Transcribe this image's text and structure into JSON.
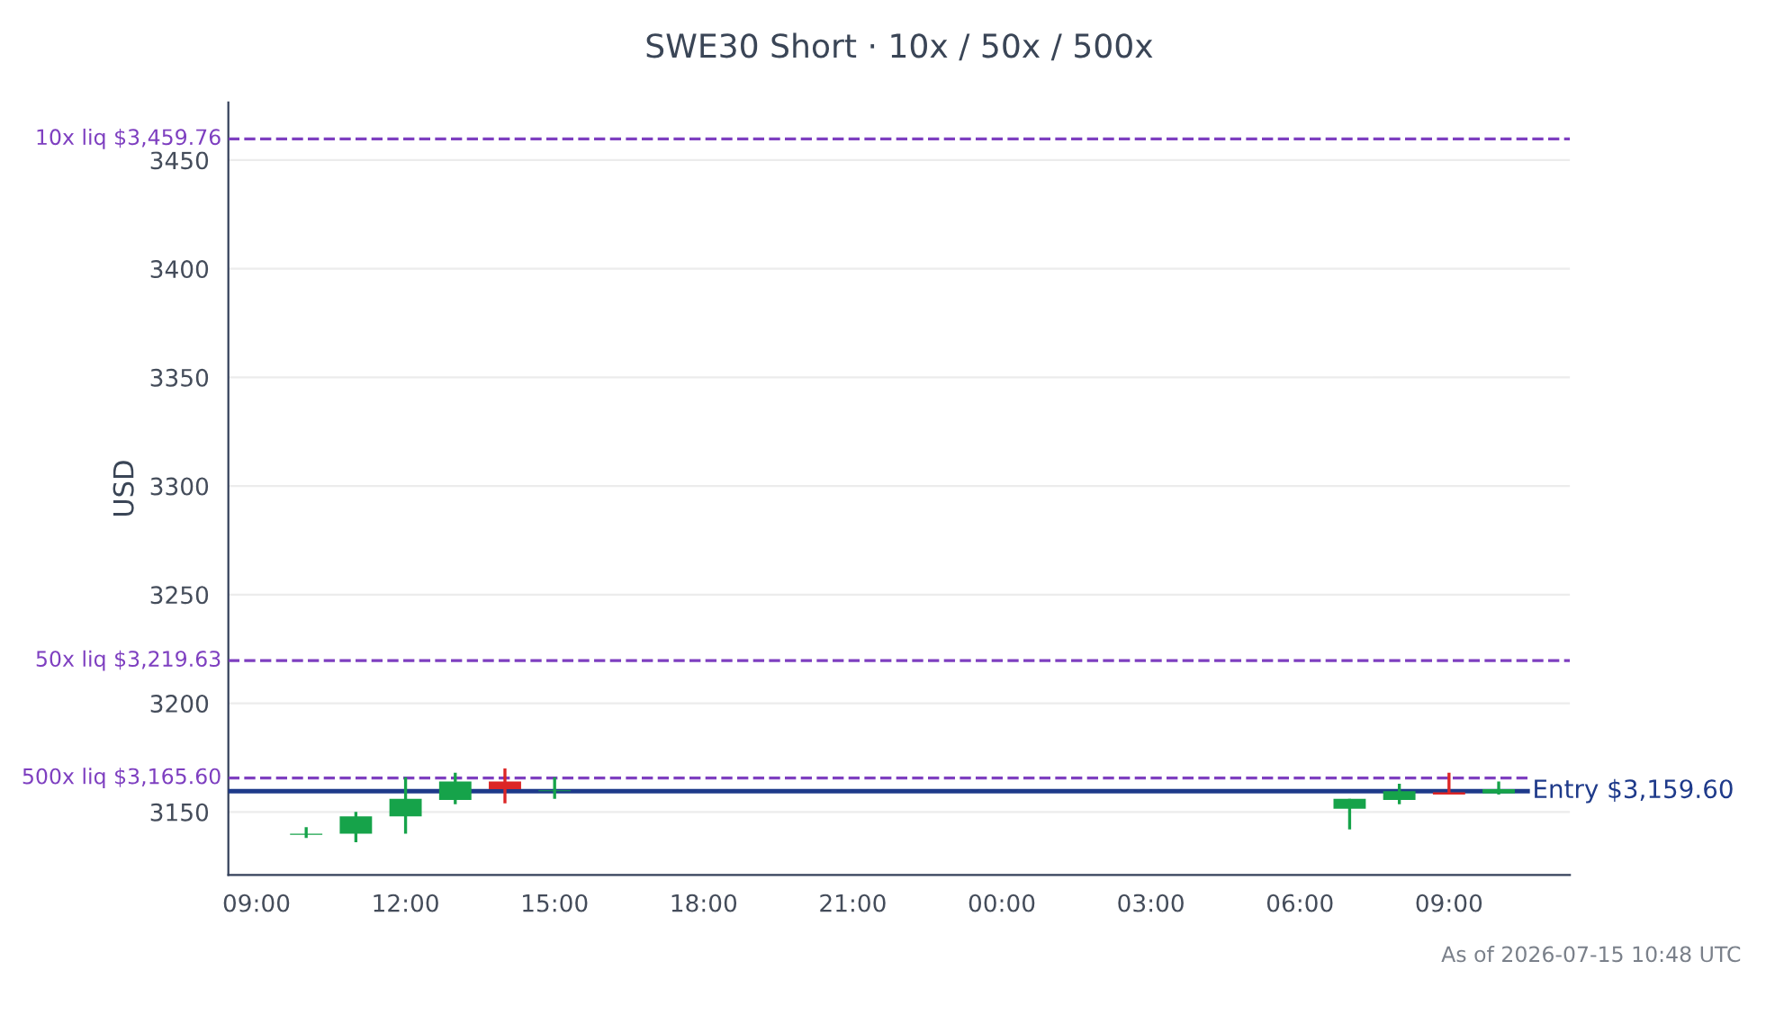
{
  "chart_data": {
    "type": "candlestick",
    "title": "SWE30 Short · 10x / 50x / 500x",
    "ylabel": "USD",
    "annotations": [
      "As of 2026-07-15 10:48 UTC"
    ],
    "x": [
      "2026-07-14T10:00",
      "2026-07-14T11:00",
      "2026-07-14T12:00",
      "2026-07-14T13:00",
      "2026-07-14T14:00",
      "2026-07-14T15:00",
      "2026-07-15T07:00",
      "2026-07-15T08:00",
      "2026-07-15T09:00",
      "2026-07-15T10:00"
    ],
    "ohlc": [
      [
        3139.5,
        3143,
        3138,
        3140
      ],
      [
        3140,
        3150,
        3136,
        3148
      ],
      [
        3148,
        3166,
        3140,
        3156
      ],
      [
        3155.5,
        3168,
        3153.5,
        3164
      ],
      [
        3164,
        3170,
        3154,
        3160.5
      ],
      [
        3159.5,
        3166,
        3156,
        3160
      ],
      [
        3151.5,
        3156,
        3142,
        3156
      ],
      [
        3155.5,
        3163,
        3153.5,
        3159.5
      ],
      [
        3159,
        3168,
        3158,
        3158
      ],
      [
        3158.5,
        3164,
        3158,
        3160.5
      ]
    ],
    "colors": [
      "#16a34a",
      "#16a34a",
      "#16a34a",
      "#16a34a",
      "#dc2626",
      "#16a34a",
      "#16a34a",
      "#16a34a",
      "#dc2626",
      "#16a34a"
    ],
    "xlim": [
      "2026-07-14T08:26",
      "2026-07-15T11:26"
    ],
    "xticks": [
      {
        "value": "2026-07-14T09:00",
        "label": "09:00"
      },
      {
        "value": "2026-07-14T12:00",
        "label": "12:00"
      },
      {
        "value": "2026-07-14T15:00",
        "label": "15:00"
      },
      {
        "value": "2026-07-14T18:00",
        "label": "18:00"
      },
      {
        "value": "2026-07-14T21:00",
        "label": "21:00"
      },
      {
        "value": "2026-07-15T00:00",
        "label": "00:00"
      },
      {
        "value": "2026-07-15T03:00",
        "label": "03:00"
      },
      {
        "value": "2026-07-15T06:00",
        "label": "06:00"
      },
      {
        "value": "2026-07-15T09:00",
        "label": "09:00"
      }
    ],
    "ylim": [
      3121,
      3476.5
    ],
    "yticks": [
      3150,
      3200,
      3250,
      3300,
      3350,
      3400,
      3450
    ],
    "grid": "y",
    "ref_lines": [
      {
        "axis": "y",
        "value": 3459.76,
        "label": "10x liq $3,459.76",
        "color": "#7e3fc0",
        "line_style": "dashed"
      },
      {
        "axis": "y",
        "value": 3219.63,
        "label": "50x liq $3,219.63",
        "color": "#7e3fc0",
        "line_style": "dashed"
      },
      {
        "axis": "y",
        "value": 3165.6,
        "label": "500x liq $3,165.60",
        "color": "#7e3fc0",
        "line_style": "dashed"
      },
      {
        "axis": "y",
        "value": 3159.6,
        "label": "Entry $3,159.60",
        "color": "#1e3a8a",
        "line_style": "solid"
      }
    ]
  }
}
